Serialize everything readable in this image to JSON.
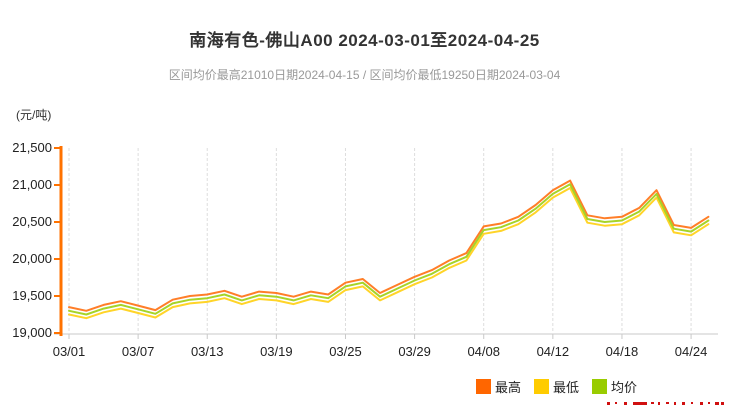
{
  "title": "南海有色-佛山A00 2024-03-01至2024-04-25",
  "subtitle": "区间均价最高21010日期2024-04-15 / 区间均价最低19250日期2024-03-04",
  "unit_label": "(元/吨)",
  "watermark_color": "#d01010",
  "chart_data": {
    "type": "line",
    "title": "南海有色-佛山A00 2024-03-01至2024-04-25",
    "xlabel": "",
    "ylabel": "(元/吨)",
    "ylim": [
      19000,
      21500
    ],
    "y_ticks": [
      19000,
      19500,
      20000,
      20500,
      21000,
      21500
    ],
    "grid": "vertical-dashed",
    "legend_position": "bottom-right",
    "axis_color": "#ff7200",
    "grid_color": "#dddddd",
    "x_axis_color": "#c9c9c9",
    "x": [
      "03/01",
      "03/04",
      "03/05",
      "03/06",
      "03/07",
      "03/08",
      "03/11",
      "03/12",
      "03/13",
      "03/14",
      "03/15",
      "03/18",
      "03/19",
      "03/20",
      "03/21",
      "03/22",
      "03/25",
      "03/26",
      "03/27",
      "03/28",
      "03/29",
      "04/01",
      "04/02",
      "04/03",
      "04/08",
      "04/09",
      "04/10",
      "04/11",
      "04/12",
      "04/15",
      "04/16",
      "04/17",
      "04/18",
      "04/19",
      "04/22",
      "04/23",
      "04/24",
      "04/25"
    ],
    "x_tick_indices": [
      0,
      4,
      8,
      12,
      16,
      20,
      24,
      28,
      32,
      36
    ],
    "series": [
      {
        "key": "high",
        "name": "最高",
        "line_color": "#ff7e28",
        "swatch_color": "#ff6600",
        "values": [
          19350,
          19300,
          19380,
          19430,
          19370,
          19310,
          19450,
          19500,
          19520,
          19570,
          19490,
          19560,
          19540,
          19490,
          19560,
          19520,
          19680,
          19730,
          19540,
          19650,
          19760,
          19850,
          19980,
          20080,
          20440,
          20480,
          20570,
          20730,
          20930,
          21060,
          20590,
          20550,
          20570,
          20690,
          20930,
          20460,
          20420,
          20570
        ]
      },
      {
        "key": "low",
        "name": "最低",
        "line_color": "#ffd428",
        "swatch_color": "#ffcc00",
        "values": [
          19250,
          19200,
          19280,
          19330,
          19270,
          19210,
          19350,
          19400,
          19420,
          19470,
          19390,
          19460,
          19440,
          19390,
          19460,
          19420,
          19580,
          19630,
          19440,
          19550,
          19660,
          19750,
          19880,
          19980,
          20340,
          20380,
          20470,
          20630,
          20830,
          20960,
          20490,
          20450,
          20470,
          20590,
          20830,
          20360,
          20320,
          20470
        ]
      },
      {
        "key": "avg",
        "name": "均价",
        "line_color": "#a6d428",
        "swatch_color": "#99cc00",
        "values": [
          19300,
          19250,
          19330,
          19380,
          19320,
          19260,
          19400,
          19450,
          19470,
          19520,
          19440,
          19510,
          19490,
          19440,
          19510,
          19470,
          19630,
          19680,
          19490,
          19600,
          19710,
          19800,
          19930,
          20030,
          20390,
          20430,
          20520,
          20680,
          20880,
          21010,
          20540,
          20500,
          20520,
          20640,
          20880,
          20410,
          20370,
          20520
        ]
      }
    ],
    "annotations": {
      "max_avg": {
        "value": 21010,
        "date": "2024-04-15"
      },
      "min_avg": {
        "value": 19250,
        "date": "2024-03-04"
      }
    }
  }
}
